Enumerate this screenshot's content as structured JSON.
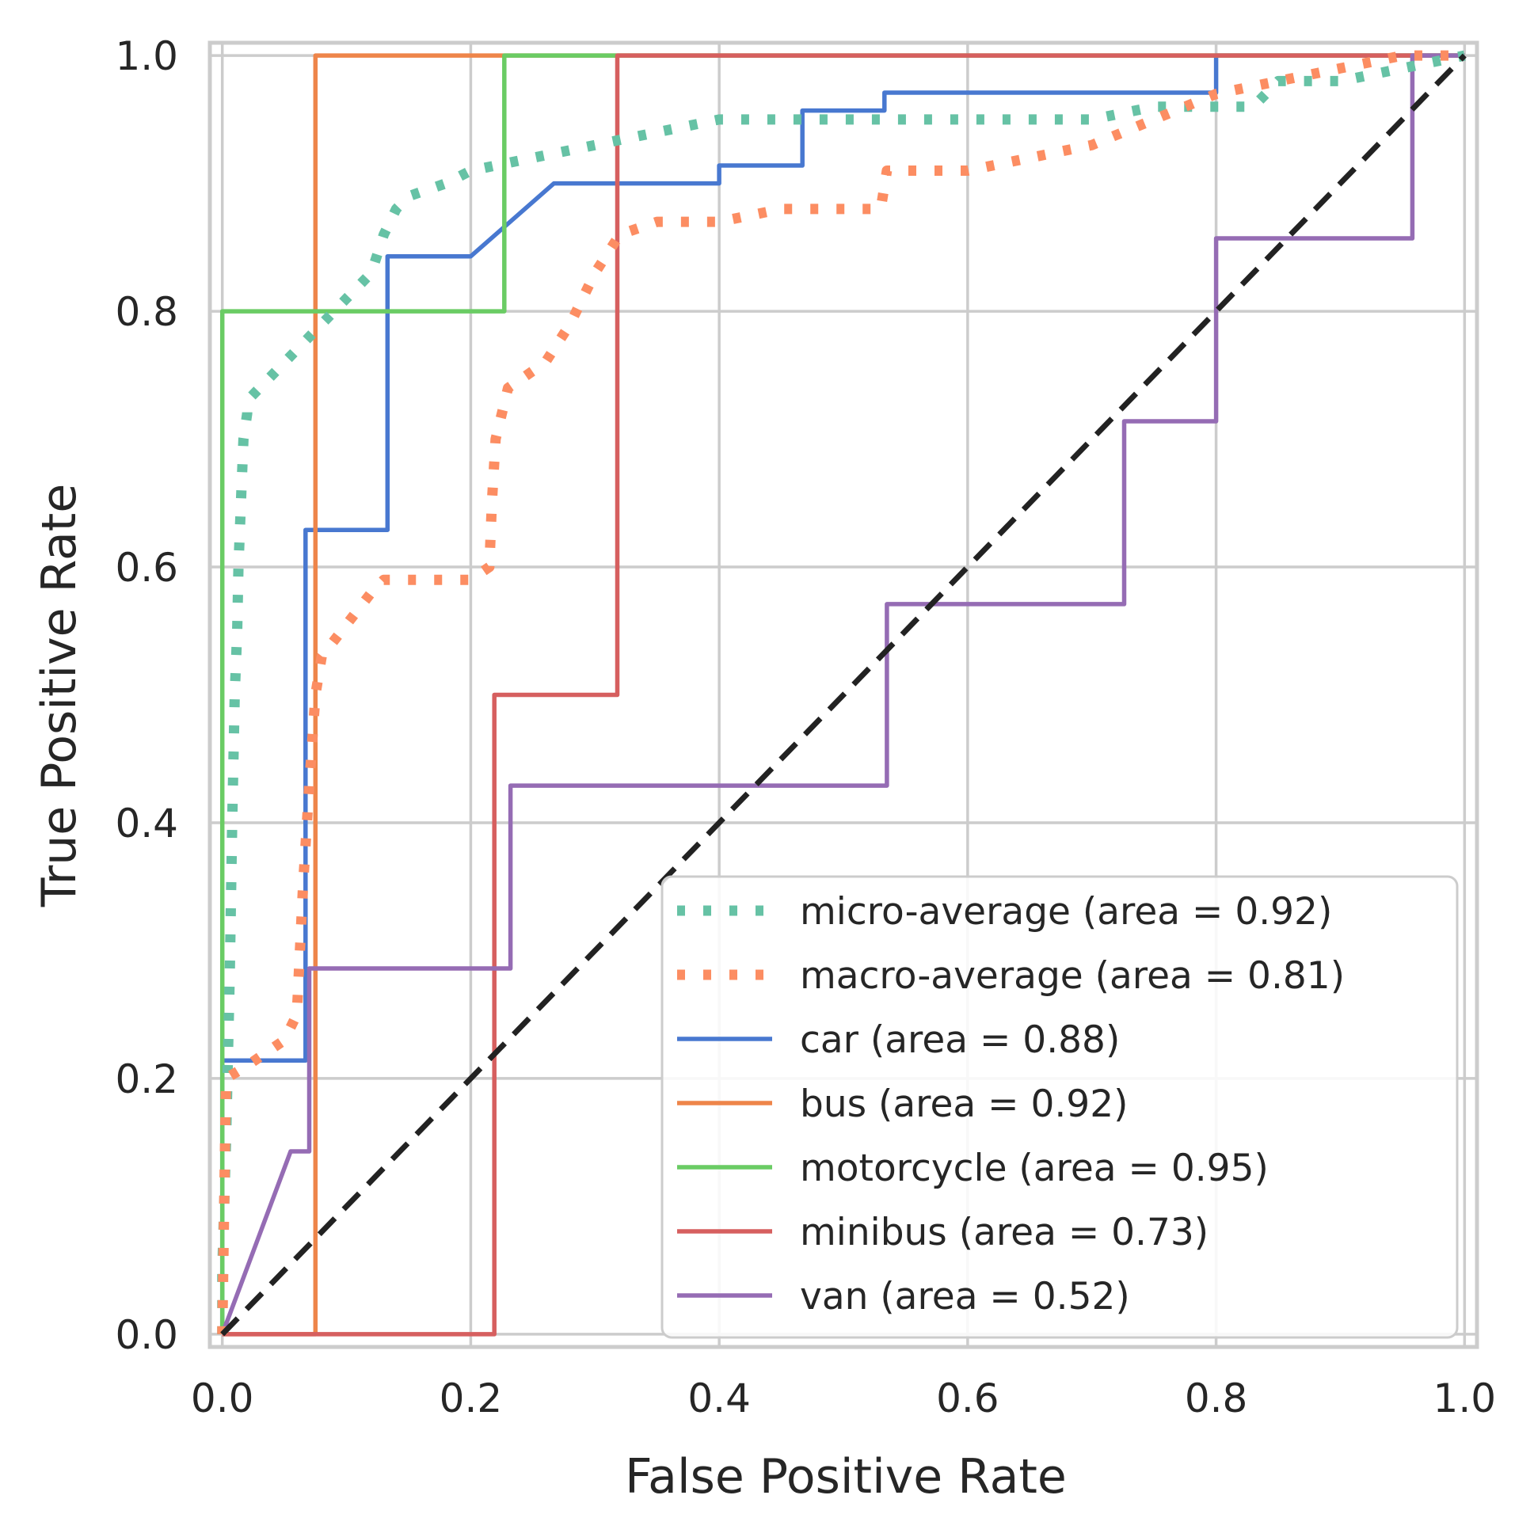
{
  "chart_data": {
    "type": "line",
    "title": "",
    "xlabel": "False Positive Rate",
    "ylabel": "True Positive Rate",
    "xlim": [
      -0.01,
      1.01
    ],
    "ylim": [
      -0.01,
      1.01
    ],
    "xticks": [
      0.0,
      0.2,
      0.4,
      0.6,
      0.8,
      1.0
    ],
    "yticks": [
      0.0,
      0.2,
      0.4,
      0.6,
      0.8,
      1.0
    ],
    "xtick_labels": [
      "0.0",
      "0.2",
      "0.4",
      "0.6",
      "0.8",
      "1.0"
    ],
    "ytick_labels": [
      "0.0",
      "0.2",
      "0.4",
      "0.6",
      "0.8",
      "1.0"
    ],
    "grid": true,
    "legend_position": "bottom-right",
    "series": [
      {
        "name": "micro-average (area = 0.92)",
        "color": "#66c2a5",
        "style": "dotted",
        "x": [
          0.0,
          0.0,
          0.003,
          0.006,
          0.008,
          0.01,
          0.012,
          0.013,
          0.015,
          0.017,
          0.02,
          0.02,
          0.05,
          0.08,
          0.1,
          0.12,
          0.13,
          0.14,
          0.15,
          0.18,
          0.2,
          0.25,
          0.3,
          0.35,
          0.4,
          0.7,
          0.75,
          0.8,
          0.83,
          0.85,
          0.9,
          1.0
        ],
        "y": [
          0.0,
          0.05,
          0.15,
          0.28,
          0.4,
          0.5,
          0.55,
          0.6,
          0.65,
          0.7,
          0.72,
          0.73,
          0.76,
          0.79,
          0.81,
          0.83,
          0.86,
          0.88,
          0.89,
          0.9,
          0.91,
          0.92,
          0.93,
          0.94,
          0.95,
          0.95,
          0.96,
          0.96,
          0.96,
          0.98,
          0.98,
          1.0
        ]
      },
      {
        "name": "macro-average (area = 0.81)",
        "color": "#fc8d62",
        "style": "dotted",
        "x": [
          0.0,
          0.003,
          0.02,
          0.05,
          0.06,
          0.065,
          0.07,
          0.075,
          0.08,
          0.12,
          0.13,
          0.2,
          0.215,
          0.217,
          0.22,
          0.23,
          0.26,
          0.28,
          0.3,
          0.32,
          0.35,
          0.4,
          0.45,
          0.53,
          0.535,
          0.6,
          0.7,
          0.75,
          0.8,
          0.85,
          0.9,
          0.95,
          1.0
        ],
        "y": [
          0.0,
          0.2,
          0.21,
          0.23,
          0.25,
          0.35,
          0.43,
          0.5,
          0.53,
          0.58,
          0.59,
          0.59,
          0.6,
          0.65,
          0.7,
          0.74,
          0.76,
          0.79,
          0.83,
          0.86,
          0.87,
          0.87,
          0.88,
          0.88,
          0.91,
          0.91,
          0.93,
          0.95,
          0.97,
          0.98,
          0.99,
          1.0,
          1.0
        ]
      },
      {
        "name": " car (area = 0.88)",
        "color": "#4878d0",
        "style": "solid",
        "x": [
          0.0,
          0.0,
          0.067,
          0.067,
          0.133,
          0.133,
          0.2,
          0.267,
          0.4,
          0.4,
          0.467,
          0.467,
          0.533,
          0.533,
          0.8,
          0.8,
          1.0
        ],
        "y": [
          0.0,
          0.214,
          0.214,
          0.629,
          0.629,
          0.843,
          0.843,
          0.9,
          0.9,
          0.914,
          0.914,
          0.957,
          0.957,
          0.971,
          0.971,
          1.0,
          1.0
        ]
      },
      {
        "name": " bus (area = 0.92)",
        "color": "#ee854a",
        "style": "solid",
        "x": [
          0.0,
          0.075,
          0.075,
          1.0
        ],
        "y": [
          0.0,
          0.0,
          1.0,
          1.0
        ]
      },
      {
        "name": " motorcycle (area = 0.95)",
        "color": "#6acc64",
        "style": "solid",
        "x": [
          0.0,
          0.0,
          0.227,
          0.227,
          1.0
        ],
        "y": [
          0.0,
          0.8,
          0.8,
          1.0,
          1.0
        ]
      },
      {
        "name": " minibus (area = 0.73)",
        "color": "#d65f5f",
        "style": "solid",
        "x": [
          0.0,
          0.219,
          0.219,
          0.318,
          0.318,
          1.0
        ],
        "y": [
          0.0,
          0.0,
          0.5,
          0.5,
          1.0,
          1.0
        ]
      },
      {
        "name": " van (area = 0.52)",
        "color": "#956cb4",
        "style": "solid",
        "x": [
          0.0,
          0.055,
          0.07,
          0.07,
          0.232,
          0.232,
          0.535,
          0.535,
          0.726,
          0.726,
          0.8,
          0.8,
          0.958,
          0.958,
          1.0
        ],
        "y": [
          0.0,
          0.143,
          0.143,
          0.286,
          0.286,
          0.429,
          0.429,
          0.571,
          0.571,
          0.714,
          0.714,
          0.857,
          0.857,
          1.0,
          1.0
        ]
      },
      {
        "name": "chance",
        "color": "#222222",
        "style": "dashed",
        "in_legend": false,
        "x": [
          0.0,
          1.0
        ],
        "y": [
          0.0,
          1.0
        ]
      }
    ]
  }
}
